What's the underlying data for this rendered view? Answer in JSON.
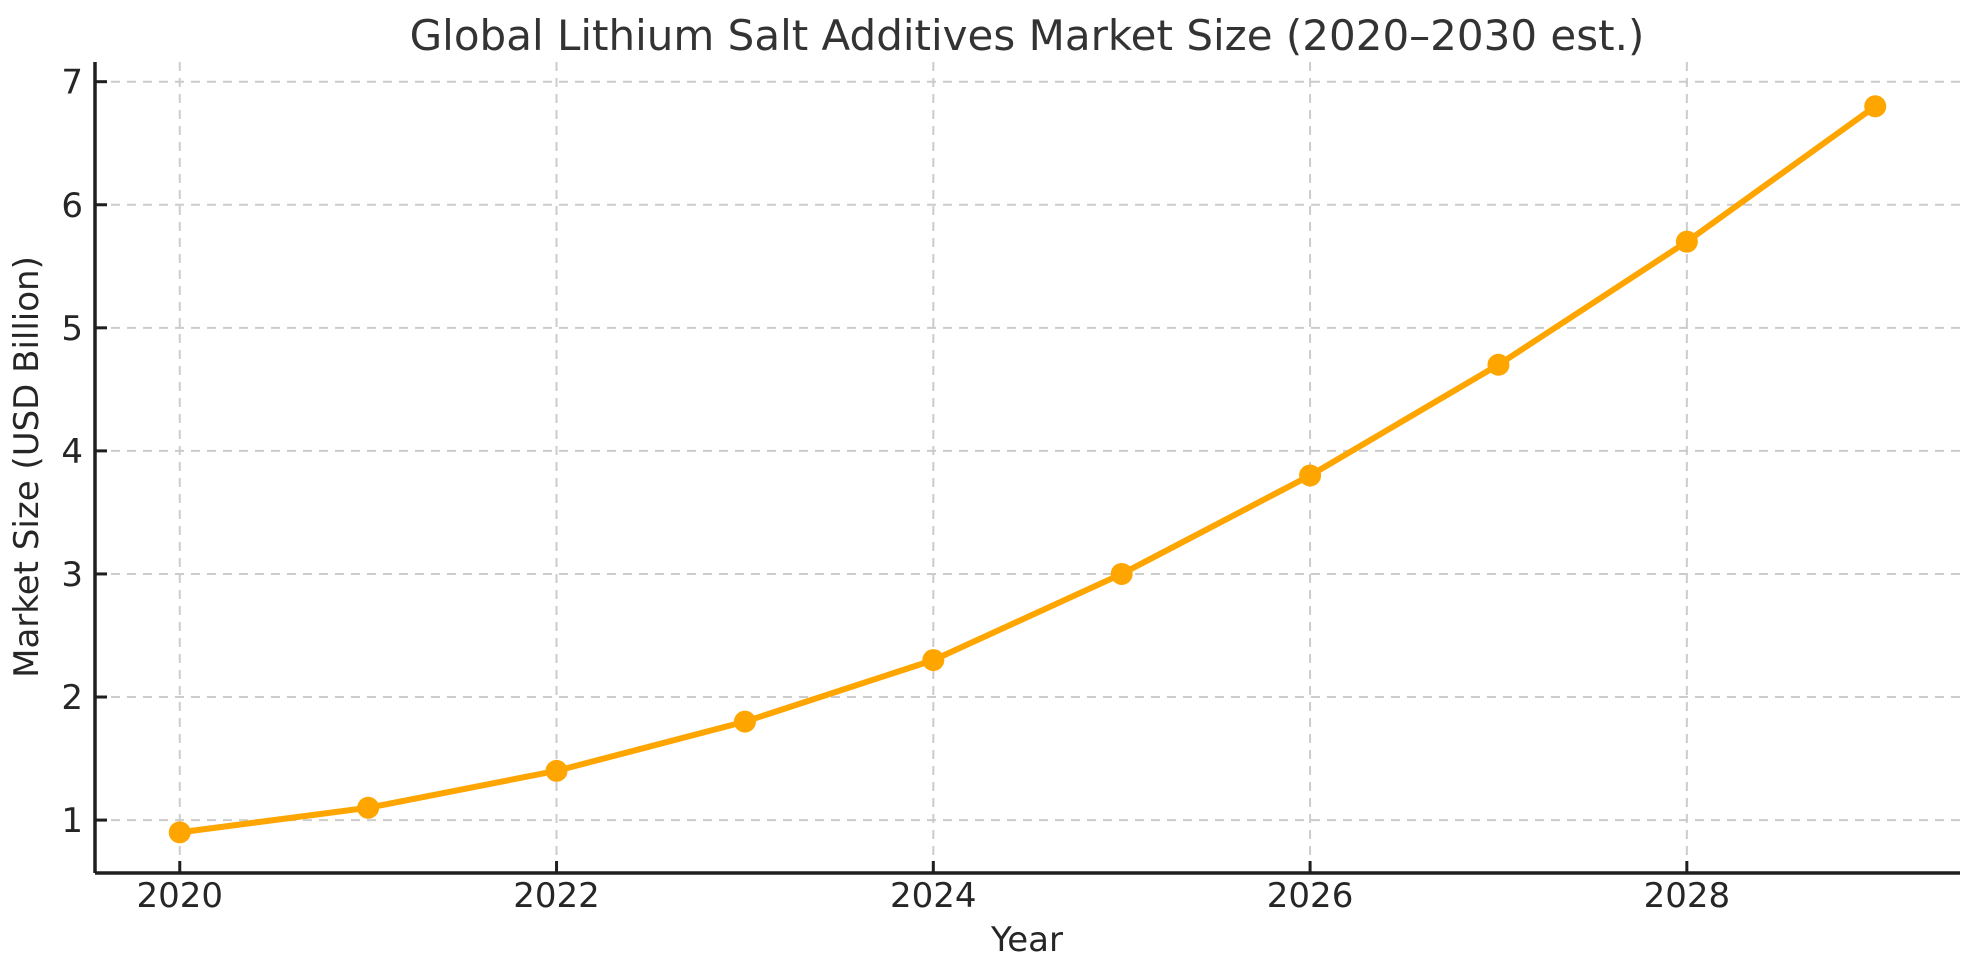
{
  "colors": {
    "background": "#FFFFFF",
    "accent": "#FFA500",
    "grid": "#CCCCCC",
    "axis": "#1F1F1F",
    "text": "#262626",
    "title": "#333333"
  },
  "chart_data": {
    "type": "line",
    "title": "Global Lithium Salt Additives Market Size (2020–2030 est.)",
    "xlabel": "Year",
    "ylabel": "Market Size (USD Billion)",
    "x": [
      2020,
      2021,
      2022,
      2023,
      2024,
      2025,
      2026,
      2027,
      2028,
      2029
    ],
    "values": [
      0.9,
      1.1,
      1.4,
      1.8,
      2.3,
      3.0,
      3.8,
      4.7,
      5.7,
      6.8
    ],
    "x_ticks": [
      2020,
      2022,
      2024,
      2026,
      2028
    ],
    "y_ticks": [
      1,
      2,
      3,
      4,
      5,
      6,
      7
    ],
    "xlim": [
      2019.55,
      2029.45
    ],
    "ylim": [
      0.57,
      7.16
    ],
    "grid": true,
    "grid_style": "dashed",
    "legend_position": "none",
    "line_color": "#FFA500",
    "marker": "circle",
    "marker_color": "#FFA500"
  }
}
